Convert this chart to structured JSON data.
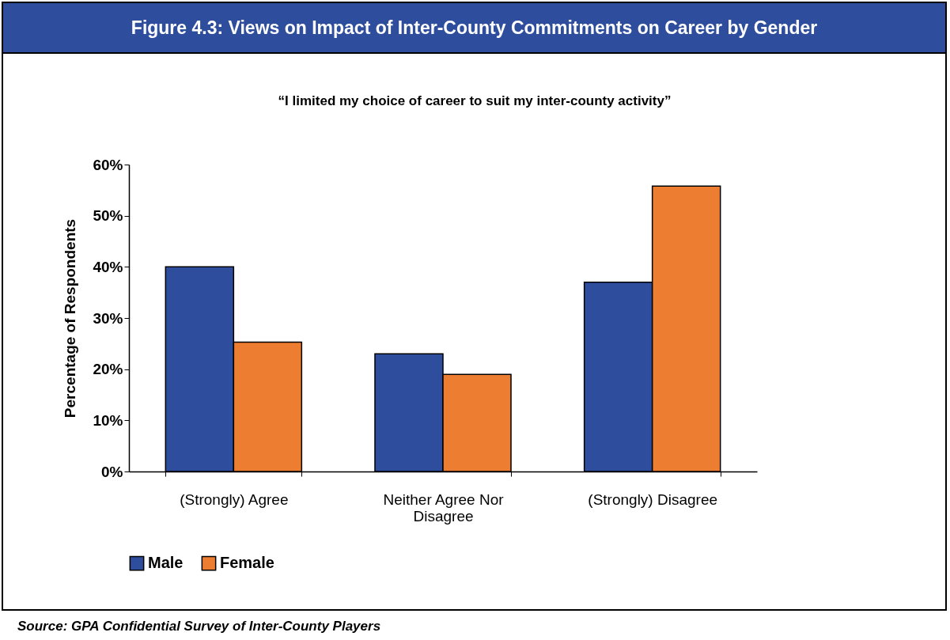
{
  "chart_data": {
    "type": "bar",
    "title": "Figure 4.3: Views on Impact of Inter-County Commitments on Career by Gender",
    "subtitle": "“I limited my choice of career to suit my inter-county activity”",
    "ylabel": "Percentage of Respondents",
    "categories": [
      "(Strongly) Agree",
      "Neither Agree Nor Disagree",
      "(Strongly) Disagree"
    ],
    "series": [
      {
        "name": "Male",
        "color": "#2e4d9c",
        "values": [
          40,
          23,
          37
        ]
      },
      {
        "name": "Female",
        "color": "#ed7d31",
        "values": [
          25.3,
          19,
          55.8
        ]
      }
    ],
    "ylim": [
      0,
      60
    ],
    "yticks": [
      {
        "value": 0,
        "label": "0%"
      },
      {
        "value": 10,
        "label": "10%"
      },
      {
        "value": 20,
        "label": "20%"
      },
      {
        "value": 30,
        "label": "30%"
      },
      {
        "value": 40,
        "label": "40%"
      },
      {
        "value": 50,
        "label": "50%"
      },
      {
        "value": 60,
        "label": "60%"
      }
    ],
    "grid": false,
    "legend": "bottom",
    "annotations": [
      "Source: GPA Confidential Survey of Inter-County Players"
    ]
  }
}
